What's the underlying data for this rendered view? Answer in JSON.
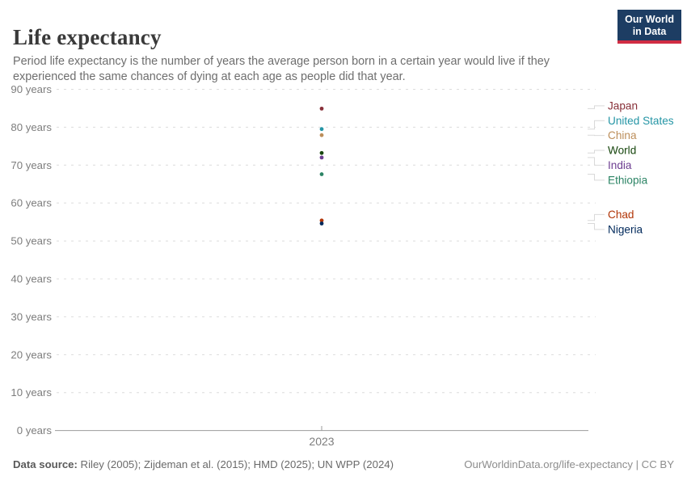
{
  "header": {
    "title": "Life expectancy",
    "subtitle": "Period life expectancy is the number of years the average person born in a certain year would live if they experienced the same chances of dying at each age as people did that year.",
    "logo": {
      "line1": "Our World",
      "line2": "in Data",
      "bg_color": "#1d3d63",
      "bar_color": "#d12d43"
    }
  },
  "chart_data": {
    "type": "scatter",
    "x": [
      2023
    ],
    "x_tick_label": "2023",
    "xlabel": "",
    "ylabel": "",
    "y_axis": {
      "ticks": [
        0,
        10,
        20,
        30,
        40,
        50,
        60,
        70,
        80,
        90
      ],
      "tick_suffix": " years",
      "range": [
        0,
        90
      ]
    },
    "grid": true,
    "legend_position": "right",
    "series": [
      {
        "name": "Japan",
        "value": 84.9,
        "color": "#883039"
      },
      {
        "name": "United States",
        "value": 79.5,
        "color": "#2495A5"
      },
      {
        "name": "China",
        "value": 77.9,
        "color": "#BC8E5A"
      },
      {
        "name": "World",
        "value": 73.2,
        "color": "#18470F"
      },
      {
        "name": "India",
        "value": 72.0,
        "color": "#6D3E91"
      },
      {
        "name": "Ethiopia",
        "value": 67.6,
        "color": "#2C8465"
      },
      {
        "name": "Chad",
        "value": 55.4,
        "color": "#B13507"
      },
      {
        "name": "Nigeria",
        "value": 54.6,
        "color": "#00295B"
      }
    ]
  },
  "footer": {
    "source_label": "Data source:",
    "source_text": " Riley (2005); Zijdeman et al. (2015); HMD (2025); UN WPP (2024)",
    "rights": "OurWorldinData.org/life-expectancy | CC BY"
  }
}
